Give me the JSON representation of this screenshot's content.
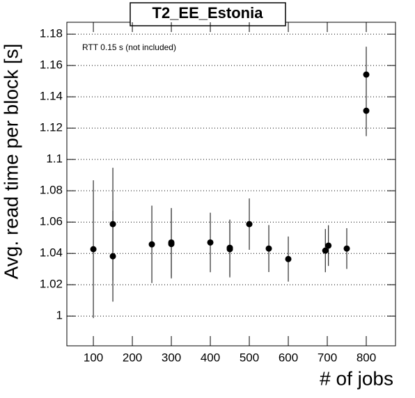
{
  "chart_data": {
    "type": "errorbar",
    "title": "T2_EE_Estonia",
    "annotation": "RTT 0.15 s (not included)",
    "x_label": "# of jobs",
    "y_label": "Avg. read time per block [s]",
    "x": [
      100,
      150,
      150,
      250,
      300,
      300,
      400,
      450,
      450,
      500,
      550,
      600,
      695,
      703,
      750,
      800,
      800
    ],
    "values": [
      1.0427,
      1.0587,
      1.0382,
      1.0458,
      1.046,
      1.047,
      1.047,
      1.0436,
      1.0427,
      1.0587,
      1.0431,
      1.0364,
      1.0418,
      1.045,
      1.0431,
      1.1542,
      1.1311
    ],
    "errors": [
      0.044,
      0.036,
      0.029,
      0.0247,
      0.022,
      0.022,
      0.019,
      0.018,
      0.018,
      0.0164,
      0.015,
      0.0144,
      0.0138,
      0.013,
      0.013,
      0.0178,
      0.0162
    ],
    "color": "#000000",
    "xlim": [
      32,
      875
    ],
    "xticks": [
      100,
      200,
      300,
      400,
      500,
      600,
      700,
      800
    ],
    "ylim": [
      0.981,
      1.1876
    ],
    "yticks": [
      1,
      1.02,
      1.04,
      1.06,
      1.08,
      1.1,
      1.12,
      1.14,
      1.16,
      1.18
    ],
    "grid": true
  }
}
